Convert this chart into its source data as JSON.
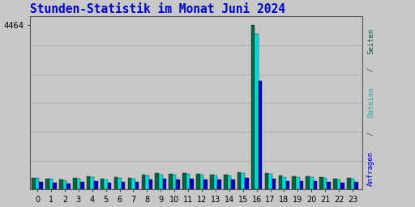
{
  "title": "Stunden-Statistik im Monat Juni 2024",
  "title_color": "#0000cc",
  "title_fontsize": 10.5,
  "background_color": "#c8c8c8",
  "ytick_label": "4464",
  "ytick_value": 4464,
  "bar_width": 0.27,
  "hours": [
    0,
    1,
    2,
    3,
    4,
    5,
    6,
    7,
    8,
    9,
    10,
    11,
    12,
    13,
    14,
    15,
    16,
    17,
    18,
    19,
    20,
    21,
    22,
    23
  ],
  "seiten": [
    320,
    300,
    270,
    310,
    345,
    290,
    342,
    310,
    405,
    435,
    425,
    435,
    415,
    403,
    393,
    463,
    4464,
    442,
    372,
    353,
    362,
    333,
    292,
    313
  ],
  "dateien": [
    305,
    283,
    253,
    293,
    323,
    273,
    313,
    283,
    383,
    403,
    393,
    413,
    393,
    383,
    373,
    443,
    4220,
    413,
    343,
    323,
    337,
    307,
    272,
    287
  ],
  "anfragen": [
    202,
    188,
    168,
    198,
    218,
    182,
    212,
    192,
    263,
    283,
    273,
    293,
    273,
    263,
    258,
    313,
    2950,
    288,
    233,
    218,
    227,
    207,
    180,
    192
  ],
  "color_seiten": "#006644",
  "color_dateien": "#00dddd",
  "color_anfragen": "#0000bb",
  "ylim_max": 4700,
  "grid_color": "#aaaaaa",
  "label_seiten": "Seiten",
  "label_dateien": "Dateien",
  "label_anfragen": "Anfragen",
  "label_color_seiten": "#006644",
  "label_color_dateien": "#00bbbb",
  "label_color_anfragen": "#0000bb"
}
